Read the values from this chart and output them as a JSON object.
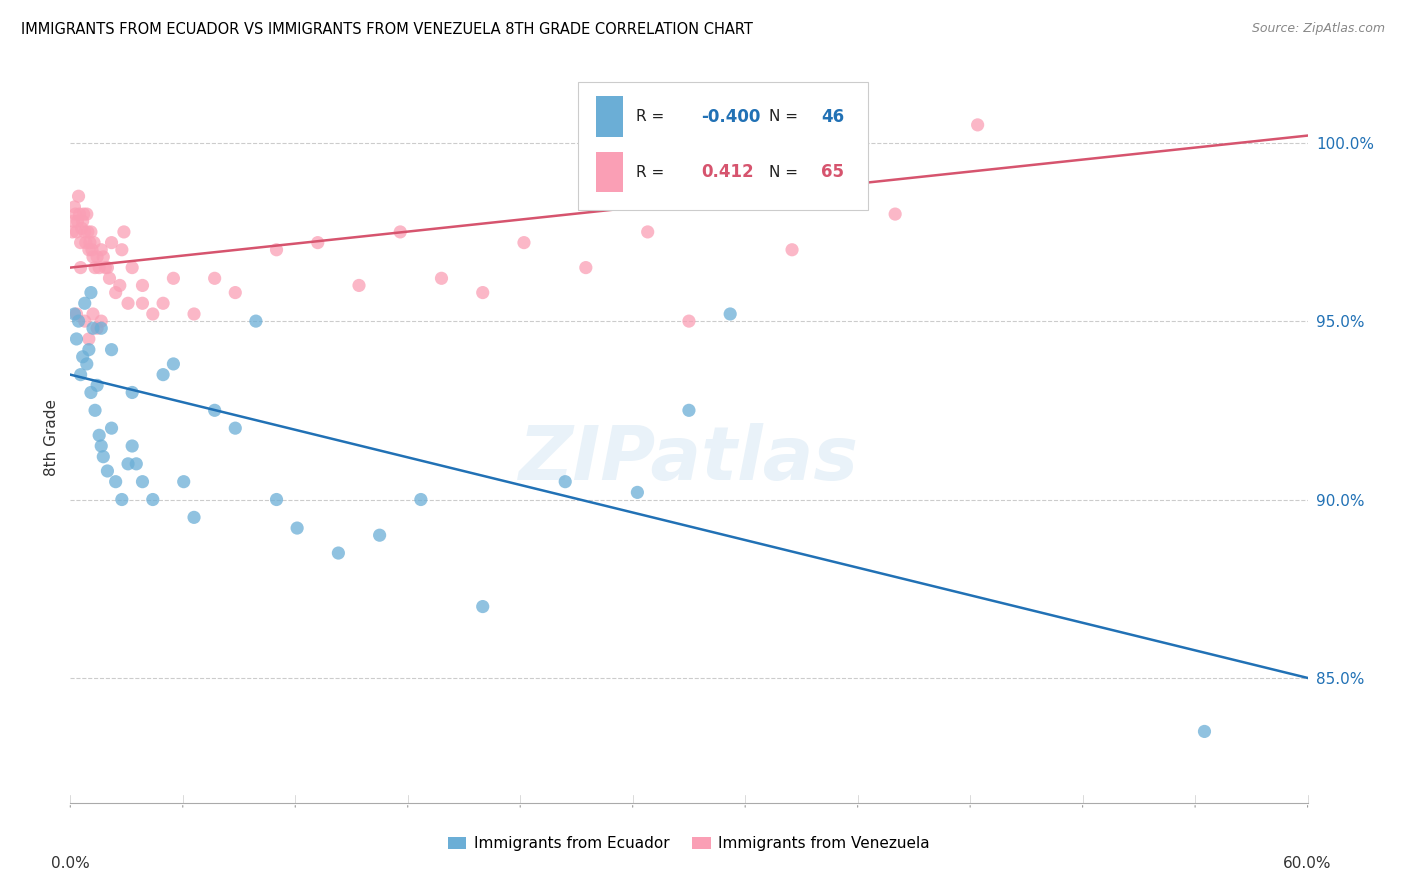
{
  "title": "IMMIGRANTS FROM ECUADOR VS IMMIGRANTS FROM VENEZUELA 8TH GRADE CORRELATION CHART",
  "source": "Source: ZipAtlas.com",
  "ylabel": "8th Grade",
  "yaxis_values": [
    85.0,
    90.0,
    95.0,
    100.0
  ],
  "xmin": 0.0,
  "xmax": 60.0,
  "ymin": 81.5,
  "ymax": 102.0,
  "legend_R_ecuador": "-0.400",
  "legend_N_ecuador": "46",
  "legend_R_venezuela": "0.412",
  "legend_N_venezuela": "65",
  "ecuador_color": "#6baed6",
  "venezuela_color": "#fa9fb5",
  "ecuador_line_color": "#2171b5",
  "venezuela_line_color": "#d6546e",
  "watermark_text": "ZIPatlas",
  "ecuador_line_x0": 0.0,
  "ecuador_line_y0": 93.5,
  "ecuador_line_x1": 60.0,
  "ecuador_line_y1": 85.0,
  "venezuela_line_x0": 0.0,
  "venezuela_line_y0": 96.5,
  "venezuela_line_x1": 60.0,
  "venezuela_line_y1": 100.2,
  "ecuador_scatter_x": [
    0.2,
    0.3,
    0.4,
    0.5,
    0.6,
    0.7,
    0.8,
    0.9,
    1.0,
    1.1,
    1.2,
    1.3,
    1.4,
    1.5,
    1.6,
    1.8,
    2.0,
    2.2,
    2.5,
    2.8,
    3.0,
    3.2,
    3.5,
    4.0,
    4.5,
    5.0,
    5.5,
    6.0,
    7.0,
    8.0,
    9.0,
    10.0,
    11.0,
    13.0,
    15.0,
    17.0,
    20.0,
    24.0,
    27.5,
    30.0,
    32.0,
    55.0,
    1.0,
    1.5,
    2.0,
    3.0
  ],
  "ecuador_scatter_y": [
    95.2,
    94.5,
    95.0,
    93.5,
    94.0,
    95.5,
    93.8,
    94.2,
    93.0,
    94.8,
    92.5,
    93.2,
    91.8,
    91.5,
    91.2,
    90.8,
    92.0,
    90.5,
    90.0,
    91.0,
    91.5,
    91.0,
    90.5,
    90.0,
    93.5,
    93.8,
    90.5,
    89.5,
    92.5,
    92.0,
    95.0,
    90.0,
    89.2,
    88.5,
    89.0,
    90.0,
    87.0,
    90.5,
    90.2,
    92.5,
    95.2,
    83.5,
    95.8,
    94.8,
    94.2,
    93.0
  ],
  "venezuela_scatter_x": [
    0.1,
    0.15,
    0.2,
    0.25,
    0.3,
    0.35,
    0.4,
    0.45,
    0.5,
    0.55,
    0.6,
    0.65,
    0.7,
    0.75,
    0.8,
    0.85,
    0.9,
    0.95,
    1.0,
    1.05,
    1.1,
    1.15,
    1.2,
    1.3,
    1.4,
    1.5,
    1.6,
    1.7,
    1.8,
    1.9,
    2.0,
    2.2,
    2.4,
    2.6,
    2.8,
    3.0,
    3.5,
    4.0,
    4.5,
    5.0,
    6.0,
    7.0,
    8.0,
    10.0,
    12.0,
    14.0,
    16.0,
    18.0,
    20.0,
    22.0,
    25.0,
    30.0,
    35.0,
    40.0,
    44.0,
    0.3,
    0.5,
    0.7,
    0.9,
    1.1,
    1.3,
    1.5,
    2.5,
    3.5,
    28.0
  ],
  "venezuela_scatter_y": [
    97.5,
    97.8,
    98.2,
    98.0,
    97.5,
    97.8,
    98.5,
    98.0,
    97.2,
    97.6,
    97.8,
    98.0,
    97.5,
    97.2,
    98.0,
    97.5,
    97.0,
    97.2,
    97.5,
    97.0,
    96.8,
    97.2,
    96.5,
    96.8,
    96.5,
    97.0,
    96.8,
    96.5,
    96.5,
    96.2,
    97.2,
    95.8,
    96.0,
    97.5,
    95.5,
    96.5,
    96.0,
    95.2,
    95.5,
    96.2,
    95.2,
    96.2,
    95.8,
    97.0,
    97.2,
    96.0,
    97.5,
    96.2,
    95.8,
    97.2,
    96.5,
    95.0,
    97.0,
    98.0,
    100.5,
    95.2,
    96.5,
    95.0,
    94.5,
    95.2,
    94.8,
    95.0,
    97.0,
    95.5,
    97.5
  ]
}
